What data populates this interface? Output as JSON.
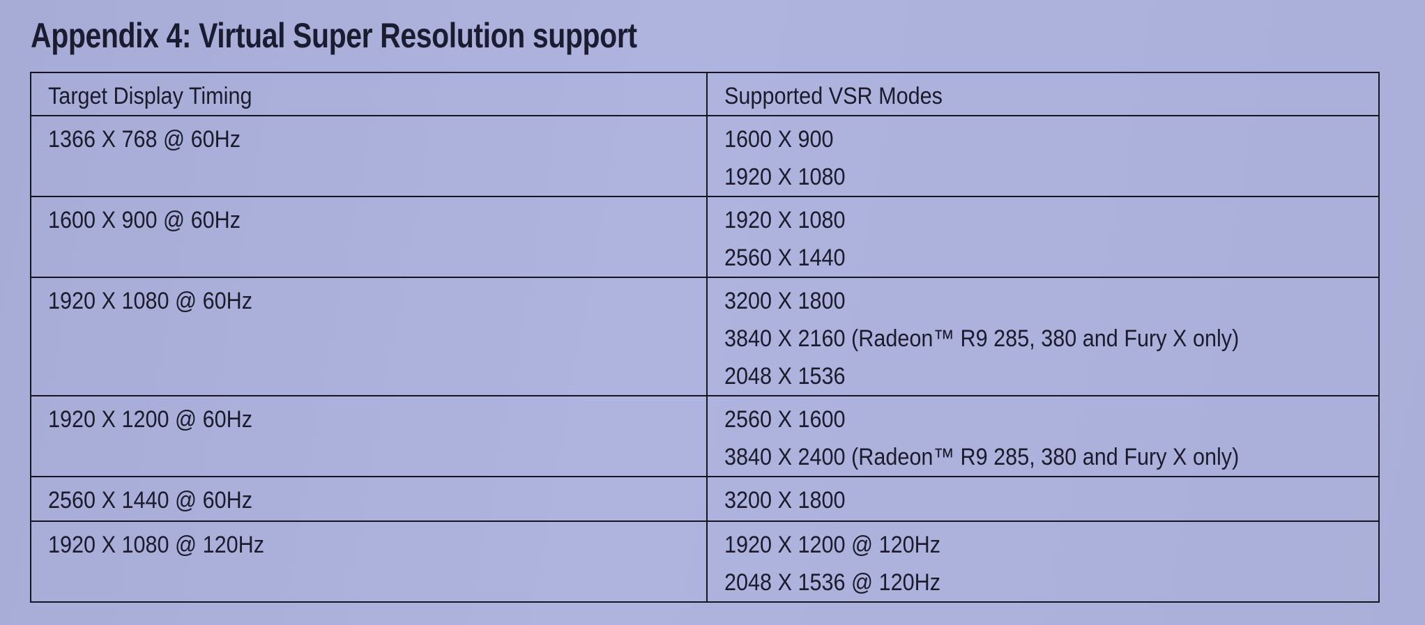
{
  "title": "Appendix 4: Virtual Super Resolution support",
  "table": {
    "headers": [
      "Target Display Timing",
      "Supported VSR Modes"
    ],
    "rows": [
      {
        "timing": "1366 X 768 @ 60Hz",
        "modes": [
          "1600 X 900",
          "1920 X 1080"
        ]
      },
      {
        "timing": "1600 X 900 @ 60Hz",
        "modes": [
          "1920 X 1080",
          "2560 X 1440"
        ]
      },
      {
        "timing": "1920 X 1080 @ 60Hz",
        "modes": [
          "3200 X 1800",
          "3840 X 2160 (Radeon™ R9 285, 380 and Fury X only)",
          "2048 X 1536"
        ]
      },
      {
        "timing": "1920 X 1200 @ 60Hz",
        "modes": [
          "2560 X 1600",
          "3840 X 2400 (Radeon™ R9 285, 380 and Fury X only)"
        ]
      },
      {
        "timing": "2560 X 1440 @ 60Hz",
        "modes": [
          "3200 X 1800"
        ]
      },
      {
        "timing": "1920 X 1080 @ 120Hz",
        "modes": [
          "1920 X 1200 @ 120Hz",
          "2048 X 1536 @ 120Hz"
        ]
      }
    ]
  }
}
